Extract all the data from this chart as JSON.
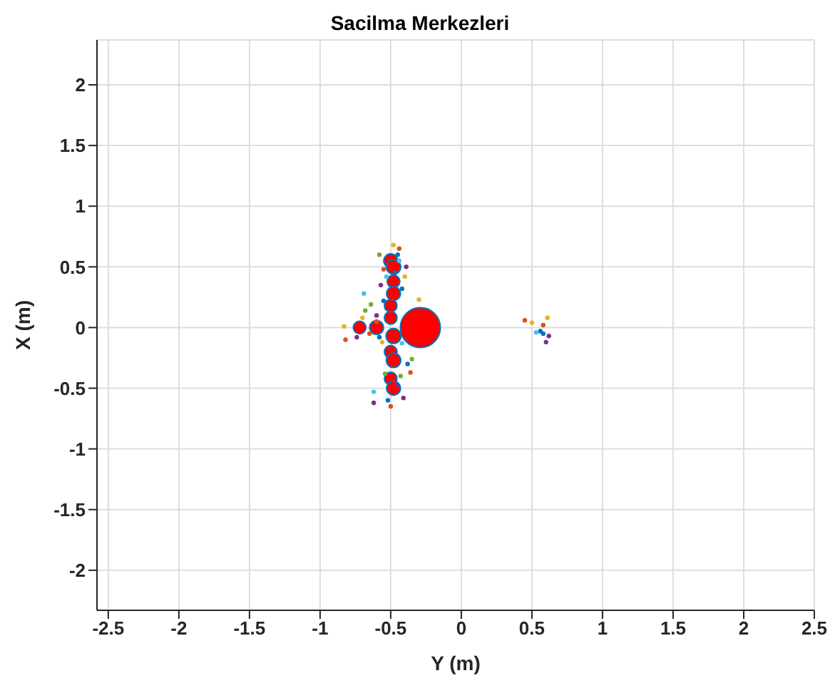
{
  "chart_data": {
    "type": "scatter",
    "title": "Sacilma Merkezleri",
    "xlabel": "Y (m)",
    "ylabel": "X (m)",
    "xlim": [
      -2.58,
      2.5
    ],
    "ylim": [
      -2.33,
      2.37
    ],
    "xticks": [
      -2.5,
      -2,
      -1.5,
      -1,
      -0.5,
      0,
      0.5,
      1,
      1.5,
      2,
      2.5
    ],
    "yticks": [
      -2,
      -1.5,
      -1,
      -0.5,
      0,
      0.5,
      1,
      1.5,
      2
    ],
    "grid": true,
    "legend": false,
    "marker": "circle",
    "series": [
      {
        "type": "bubble",
        "color": "#ff0000",
        "x": [
          -0.29,
          -0.5,
          -0.48,
          -0.48,
          -0.48,
          -0.5,
          -0.5,
          -0.48,
          -0.5,
          -0.48,
          -0.5,
          -0.48,
          -0.72,
          -0.6
        ],
        "values": [
          0,
          0.55,
          0.5,
          0.38,
          0.28,
          0.18,
          0.08,
          -0.07,
          -0.2,
          -0.27,
          -0.42,
          -0.5,
          0,
          0
        ],
        "sizes": [
          1,
          0.12,
          0.13,
          0.1,
          0.12,
          0.1,
          0.1,
          0.14,
          0.1,
          0.13,
          0.1,
          0.12,
          0.1,
          0.12
        ]
      },
      {
        "color": "#0072bd",
        "x": [
          -0.45,
          -0.55,
          -0.42,
          -0.58,
          -0.52,
          -0.38,
          -0.47,
          0.56,
          0.58
        ],
        "values": [
          0.6,
          0.22,
          0.32,
          -0.08,
          -0.6,
          -0.3,
          0.45,
          -0.03,
          -0.05
        ]
      },
      {
        "color": "#d95319",
        "x": [
          -0.82,
          -0.65,
          -0.44,
          -0.5,
          -0.36,
          -0.55,
          -0.6,
          0.45,
          0.58
        ],
        "values": [
          -0.1,
          -0.05,
          0.65,
          -0.65,
          -0.37,
          0.48,
          0.05,
          0.06,
          0.02
        ]
      },
      {
        "color": "#edb120",
        "x": [
          -0.83,
          -0.56,
          -0.4,
          -0.48,
          -0.7,
          -0.3,
          0.5,
          0.61
        ],
        "values": [
          0.01,
          -0.12,
          0.42,
          0.68,
          0.08,
          0.23,
          0.04,
          0.08
        ]
      },
      {
        "color": "#7e2f8e",
        "x": [
          -0.74,
          -0.57,
          -0.41,
          -0.62,
          -0.39,
          -0.45,
          -0.6,
          0.6,
          0.62
        ],
        "values": [
          -0.08,
          0.35,
          -0.58,
          -0.62,
          0.5,
          -0.48,
          0.1,
          -0.12,
          -0.07
        ]
      },
      {
        "color": "#77ac30",
        "x": [
          -0.68,
          -0.58,
          -0.35,
          -0.43,
          -0.64,
          -0.54
        ],
        "values": [
          0.14,
          0.6,
          -0.26,
          -0.4,
          0.19,
          -0.38
        ]
      },
      {
        "color": "#4dbeee",
        "x": [
          -0.69,
          -0.53,
          -0.42,
          -0.62,
          -0.44,
          0.53
        ],
        "values": [
          0.28,
          0.42,
          -0.13,
          -0.53,
          0.55,
          -0.04
        ]
      }
    ]
  }
}
